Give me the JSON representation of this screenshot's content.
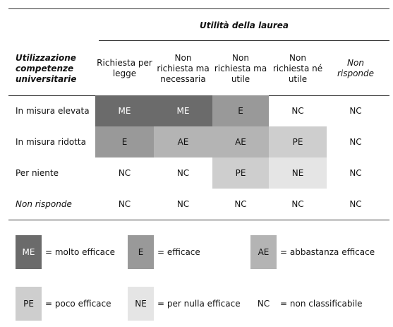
{
  "table": {
    "group_header": "Utilità della laurea",
    "row_header": "Utilizzazione competenze universitarie",
    "columns": [
      "Richiesta per legge",
      "Non richiesta ma necessaria",
      "Non richiesta ma utile",
      "Non richiesta né utile",
      "Non risponde"
    ],
    "rows": [
      {
        "label": "In misura elevata",
        "cells": [
          "ME",
          "ME",
          "E",
          "NC",
          "NC"
        ]
      },
      {
        "label": "In misura ridotta",
        "cells": [
          "E",
          "AE",
          "AE",
          "PE",
          "NC"
        ]
      },
      {
        "label": "Per niente",
        "cells": [
          "NC",
          "NC",
          "PE",
          "NE",
          "NC"
        ]
      },
      {
        "label": "Non risponde",
        "cells": [
          "NC",
          "NC",
          "NC",
          "NC",
          "NC"
        ]
      }
    ]
  },
  "legend": [
    {
      "code": "ME",
      "text": "= molto efficace"
    },
    {
      "code": "E",
      "text": "= efficace"
    },
    {
      "code": "AE",
      "text": "= abbastanza efficace"
    },
    {
      "code": "PE",
      "text": "= poco efficace"
    },
    {
      "code": "NE",
      "text": "= per nulla efficace"
    },
    {
      "code": "NC",
      "text": "= non classificabile"
    }
  ]
}
